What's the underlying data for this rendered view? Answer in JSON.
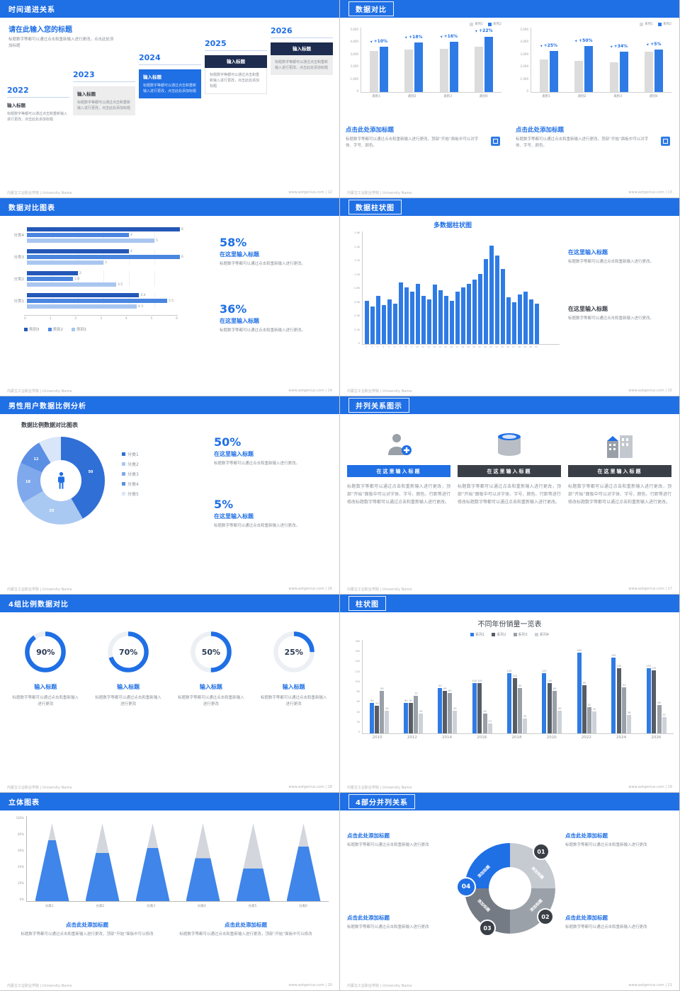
{
  "icons": {
    "delta_arrow": "➤"
  },
  "colors": {
    "accent": "#1f6fe5",
    "bar_blue": "#2f7be5",
    "bar_gray": "#d9d9d9",
    "dark": "#3a3f47"
  },
  "footer": {
    "org": "内蒙古工业职业学院 | University Name",
    "site": "www.aotgenius.com"
  },
  "slides": {
    "s12": {
      "title": "时间递进关系",
      "page": "12",
      "heading": "请在此输入您的标题",
      "heading_desc": "标题数字等都可以通过点击和重新输入进行更改，点击此处添加标题",
      "box_title": "输入标题",
      "years": [
        {
          "year": "2022",
          "style": "plain",
          "text": "标题数字等都可以通过点击和重新输入进行更改，点击此处添加标题"
        },
        {
          "year": "2023",
          "style": "gray",
          "text": "标题数字等都可以通过点击和重新输入进行更改，点击此处添加标题"
        },
        {
          "year": "2024",
          "style": "blue",
          "text": "标题数字等都可以通过点击和重新输入进行更改，点击此处添加标题"
        },
        {
          "year": "2025",
          "style": "darklabel",
          "text": "标题数字等都可以通过点击和重新输入进行更改，点击此处添加标题"
        },
        {
          "year": "2026",
          "style": "darklabel-gray",
          "text": "标题数字等都可以通过点击和重新输入进行更改，点击此处添加标题"
        }
      ]
    },
    "s13": {
      "title": "数据对比",
      "page": "13",
      "chart_data": [
        {
          "type": "bar",
          "legend": [
            "系列1",
            "系列2"
          ],
          "categories": [
            "类别1",
            "类别2",
            "类别3",
            "类别4"
          ],
          "series": [
            {
              "name": "系列1",
              "values": [
                4000,
                4100,
                4200,
                4400
              ]
            },
            {
              "name": "系列2",
              "values": [
                4400,
                4800,
                4900,
                5400
              ]
            }
          ],
          "delta_labels": [
            "+10%",
            "+18%",
            "+16%",
            "+22%"
          ],
          "ymax": 5500,
          "yticks": [
            "5,000",
            "4,000",
            "3,000",
            "2,000",
            "1,000",
            "0"
          ]
        },
        {
          "type": "bar",
          "legend": [
            "系列1",
            "系列2"
          ],
          "categories": [
            "类别1",
            "类别2",
            "类别3",
            "类别4"
          ],
          "series": [
            {
              "name": "系列1",
              "values": [
                3200,
                3000,
                2900,
                3900
              ]
            },
            {
              "name": "系列2",
              "values": [
                4000,
                4500,
                3900,
                4100
              ]
            }
          ],
          "delta_labels": [
            "+25%",
            "+50%",
            "+34%",
            "+5%"
          ],
          "ymax": 5500,
          "yticks": [
            "5,000",
            "4,000",
            "3,000",
            "2,000",
            "1,000",
            "0"
          ]
        }
      ],
      "blocks": [
        {
          "heading": "点击此处添加标题",
          "text": "标题数字等都可以通过点击和重新输入进行更改，顶部“开始”面板中可以对字体、字号、颜色。"
        },
        {
          "heading": "点击此处添加标题",
          "text": "标题数字等都可以通过点击和重新输入进行更改，顶部“开始”面板中可以对字体、字号、颜色。"
        }
      ]
    },
    "s14": {
      "title": "数据对比图表",
      "page": "14",
      "chart_data": {
        "type": "bar-horizontal",
        "categories": [
          "分类4",
          "分类3",
          "分类2",
          "分类1"
        ],
        "series": [
          {
            "name": "类别3",
            "color": "#2458b8",
            "values": [
              6,
              4,
              2,
              4.4
            ]
          },
          {
            "name": "类别2",
            "color": "#4a86e0",
            "values": [
              4,
              6,
              1.8,
              5.5
            ]
          },
          {
            "name": "类别1",
            "color": "#a9c6f0",
            "values": [
              5,
              3,
              3.5,
              4.3
            ]
          }
        ],
        "xticks": [
          "0",
          "1",
          "2",
          "3",
          "4",
          "5",
          "6"
        ],
        "xmax": 6
      },
      "stats": [
        {
          "pct": "58%",
          "heading": "在这里输入标题",
          "text": "标题数字等都可以通过点击和重新输入进行更改。"
        },
        {
          "pct": "36%",
          "heading": "在这里输入标题",
          "text": "标题数字等都可以通过点击和重新输入进行更改。"
        }
      ]
    },
    "s15": {
      "title": "数据柱状图",
      "page": "15",
      "chart_data": {
        "type": "bar",
        "title": "多数据柱状图",
        "x": [
          "1",
          "2",
          "3",
          "4",
          "5",
          "6",
          "7",
          "8",
          "9",
          "10",
          "11",
          "12",
          "13",
          "14",
          "15",
          "16",
          "17",
          "18",
          "19",
          "20",
          "21",
          "22",
          "23",
          "24",
          "25",
          "26",
          "27",
          "28",
          "29",
          "30",
          "31"
        ],
        "values": [
          640,
          560,
          720,
          580,
          660,
          600,
          920,
          840,
          780,
          900,
          720,
          660,
          880,
          800,
          720,
          640,
          780,
          840,
          900,
          960,
          1040,
          1260,
          1460,
          1320,
          1120,
          700,
          620,
          740,
          780,
          660,
          600
        ],
        "ymax": 1600,
        "yticks": [
          "1.6K",
          "1.4K",
          "1.2K",
          "1.0K",
          "0.8K",
          "0.6K",
          "0.4K",
          "0.2K",
          "0"
        ]
      },
      "blocks": [
        {
          "heading": "在这里输入标题",
          "text": "标题数字等都可以通过点击和重新输入进行更改。",
          "style": "blue"
        },
        {
          "heading": "在这里输入标题",
          "text": "标题数字等都可以通过点击和重新输入进行更改。",
          "style": "dark"
        }
      ]
    },
    "s16": {
      "title": "男性用户数据比例分析",
      "page": "16",
      "chart_title": "数据比例数据对比图表",
      "donut": {
        "type": "donut",
        "labels": [
          "分类1",
          "分类2",
          "分类3",
          "分类4",
          "分类5"
        ],
        "values": [
          50,
          30,
          18,
          12,
          10
        ],
        "value_labels": [
          "50",
          "30",
          "18",
          "12",
          ""
        ],
        "colors": [
          "#2f6fd6",
          "#aac9f2",
          "#7fa9ec",
          "#5b8fe4",
          "#d9e6fa"
        ]
      },
      "stats": [
        {
          "pct": "50%",
          "heading": "在这里输入标题",
          "text": "标题数字等都可以通过点击和重新输入进行更改。"
        },
        {
          "pct": "5%",
          "heading": "在这里输入标题",
          "text": "标题数字等都可以通过点击和重新输入进行更改。"
        }
      ]
    },
    "s17": {
      "title": "并列关系图示",
      "page": "17",
      "columns": [
        {
          "header": "在这里输入标题",
          "style": "blue",
          "icon": "medical-person",
          "text": "标题数字等都可以通过点击和重新输入进行更改，顶部“开始”面板中可以对字体、字号、颜色、行距等进行修改标题数字等都可以通过点击和重新输入进行更改。"
        },
        {
          "header": "在这里输入标题",
          "style": "dark",
          "icon": "database",
          "text": "标题数字等都可以通过点击和重新输入进行更改，顶部“开始”面板中可以对字体、字号、颜色、行距等进行修改标题数字等都可以通过点击和重新输入进行更改。"
        },
        {
          "header": "在这里输入标题",
          "style": "dark",
          "icon": "building",
          "text": "标题数字等都可以通过点击和重新输入进行更改，顶部“开始”面板中可以对字体、字号、颜色、行距等进行修改标题数字等都可以通过点击和重新输入进行更改。"
        }
      ]
    },
    "s18": {
      "title": "4组比例数据对比",
      "page": "18",
      "rings": [
        {
          "pct": 90,
          "label": "90%",
          "heading": "输入标题",
          "text": "标题数字等都可以通过点击和重新输入进行更改"
        },
        {
          "pct": 70,
          "label": "70%",
          "heading": "输入标题",
          "text": "标题数字等都可以通过点击和重新输入进行更改"
        },
        {
          "pct": 50,
          "label": "50%",
          "heading": "输入标题",
          "text": "标题数字等都可以通过点击和重新输入进行更改"
        },
        {
          "pct": 25,
          "label": "25%",
          "heading": "输入标题",
          "text": "标题数字等都可以通过点击和重新输入进行更改"
        }
      ]
    },
    "s19": {
      "title": "柱状图",
      "page": "19",
      "chart_data": {
        "type": "bar",
        "title": "不同年份销量一览表",
        "categories": [
          "2010",
          "2012",
          "2014",
          "2016",
          "2018",
          "2020",
          "2022",
          "2024",
          "2026"
        ],
        "series": [
          {
            "name": "系列1",
            "values": [
              60,
              60,
              90,
              100,
              120,
              120,
              160,
              150,
              130
            ]
          },
          {
            "name": "系列2",
            "values": [
              55,
              60,
              85,
              100,
              110,
              100,
              95,
              130,
              125
            ]
          },
          {
            "name": "系列3",
            "values": [
              85,
              75,
              80,
              40,
              90,
              85,
              52,
              92,
              56
            ]
          },
          {
            "name": "系列4",
            "values": [
              45,
              40,
              45,
              20,
              30,
              45,
              43,
              36,
              32
            ]
          }
        ],
        "colors": [
          "#2f7be5",
          "#565d66",
          "#9aa0a8",
          "#cdd2d8"
        ],
        "ymax": 180,
        "yticks": [
          "180",
          "160",
          "140",
          "120",
          "100",
          "80",
          "60",
          "40",
          "20",
          "0"
        ]
      }
    },
    "s20": {
      "title": "立体图表",
      "page": "20",
      "chart_data": {
        "type": "cone",
        "categories": [
          "分类1",
          "分类2",
          "分类3",
          "分类4",
          "分类5",
          "分类6"
        ],
        "fill_pcts": [
          78,
          62,
          68,
          55,
          42,
          70
        ],
        "yticks": [
          "100%",
          "80%",
          "60%",
          "40%",
          "20%",
          "0%"
        ]
      },
      "blocks": [
        {
          "heading": "点击此处添加标题",
          "text": "标题数字等都可以通过点击和重新输入进行更改，顶部“开始”面板中可以修改"
        },
        {
          "heading": "点击此处添加标题",
          "text": "标题数字等都可以通过点击和重新输入进行更改，顶部“开始”面板中可以修改"
        }
      ]
    },
    "s21": {
      "title": "4部分并列关系",
      "page": "21",
      "segments": [
        "添加标题",
        "添加标题",
        "添加标题",
        "添加标题"
      ],
      "badges": [
        "01",
        "02",
        "03",
        "04"
      ],
      "blocks": [
        {
          "heading": "点击此处添加标题",
          "text": "标题数字等都可以通过点击和重新输入进行更改"
        },
        {
          "heading": "点击此处添加标题",
          "text": "标题数字等都可以通过点击和重新输入进行更改"
        },
        {
          "heading": "点击此处添加标题",
          "text": "标题数字等都可以通过点击和重新输入进行更改"
        },
        {
          "heading": "点击此处添加标题",
          "text": "标题数字等都可以通过点击和重新输入进行更改"
        }
      ]
    }
  }
}
